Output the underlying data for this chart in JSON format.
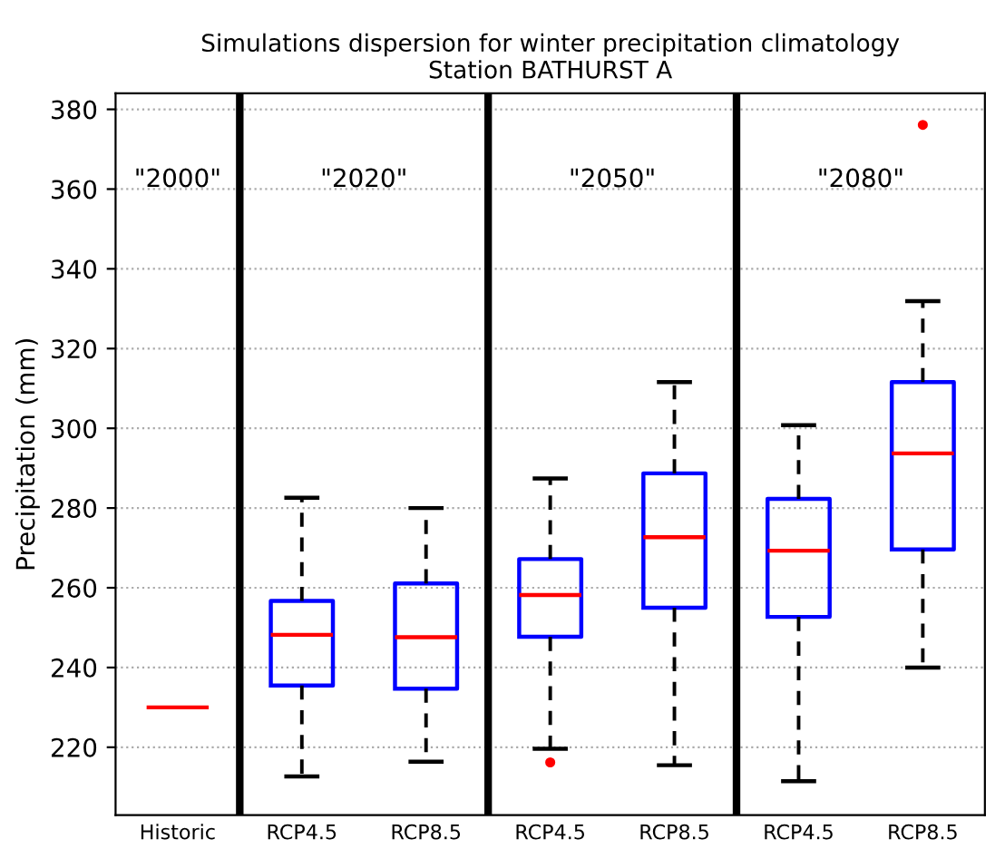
{
  "chart_data": {
    "type": "box",
    "title": "Simulations dispersion for winter precipitation climatology\nStation BATHURST A",
    "ylabel": "Precipitation (mm)",
    "categories": [
      "Historic",
      "RCP4.5",
      "RCP8.5",
      "RCP4.5",
      "RCP8.5",
      "RCP4.5",
      "RCP8.5"
    ],
    "boxes": [
      {
        "low": 230,
        "q1": 230,
        "median": 230,
        "q3": 230,
        "high": 230
      },
      {
        "low": 212.7,
        "q1": 235.5,
        "median": 248.2,
        "q3": 256.7,
        "high": 282.6
      },
      {
        "low": 216.4,
        "q1": 234.7,
        "median": 247.6,
        "q3": 261.1,
        "high": 280
      },
      {
        "low": 219.6,
        "q1": 247.7,
        "median": 258.2,
        "q3": 267.2,
        "high": 287.4,
        "outliers": [
          216.2
        ]
      },
      {
        "low": 215.5,
        "q1": 255,
        "median": 272.7,
        "q3": 288.7,
        "high": 311.6
      },
      {
        "low": 211.5,
        "q1": 252.7,
        "median": 269.3,
        "q3": 282.3,
        "high": 300.8
      },
      {
        "low": 240,
        "q1": 269.6,
        "median": 293.7,
        "q3": 311.6,
        "high": 331.9,
        "outliers": [
          376.1
        ]
      }
    ],
    "ylim": [
      203,
      384
    ],
    "yticks": [
      220,
      240,
      260,
      280,
      300,
      320,
      340,
      360,
      380
    ],
    "grid": "y",
    "annotations": [
      "\"2000\"",
      "\"2020\"",
      "\"2050\"",
      "\"2080\""
    ]
  }
}
